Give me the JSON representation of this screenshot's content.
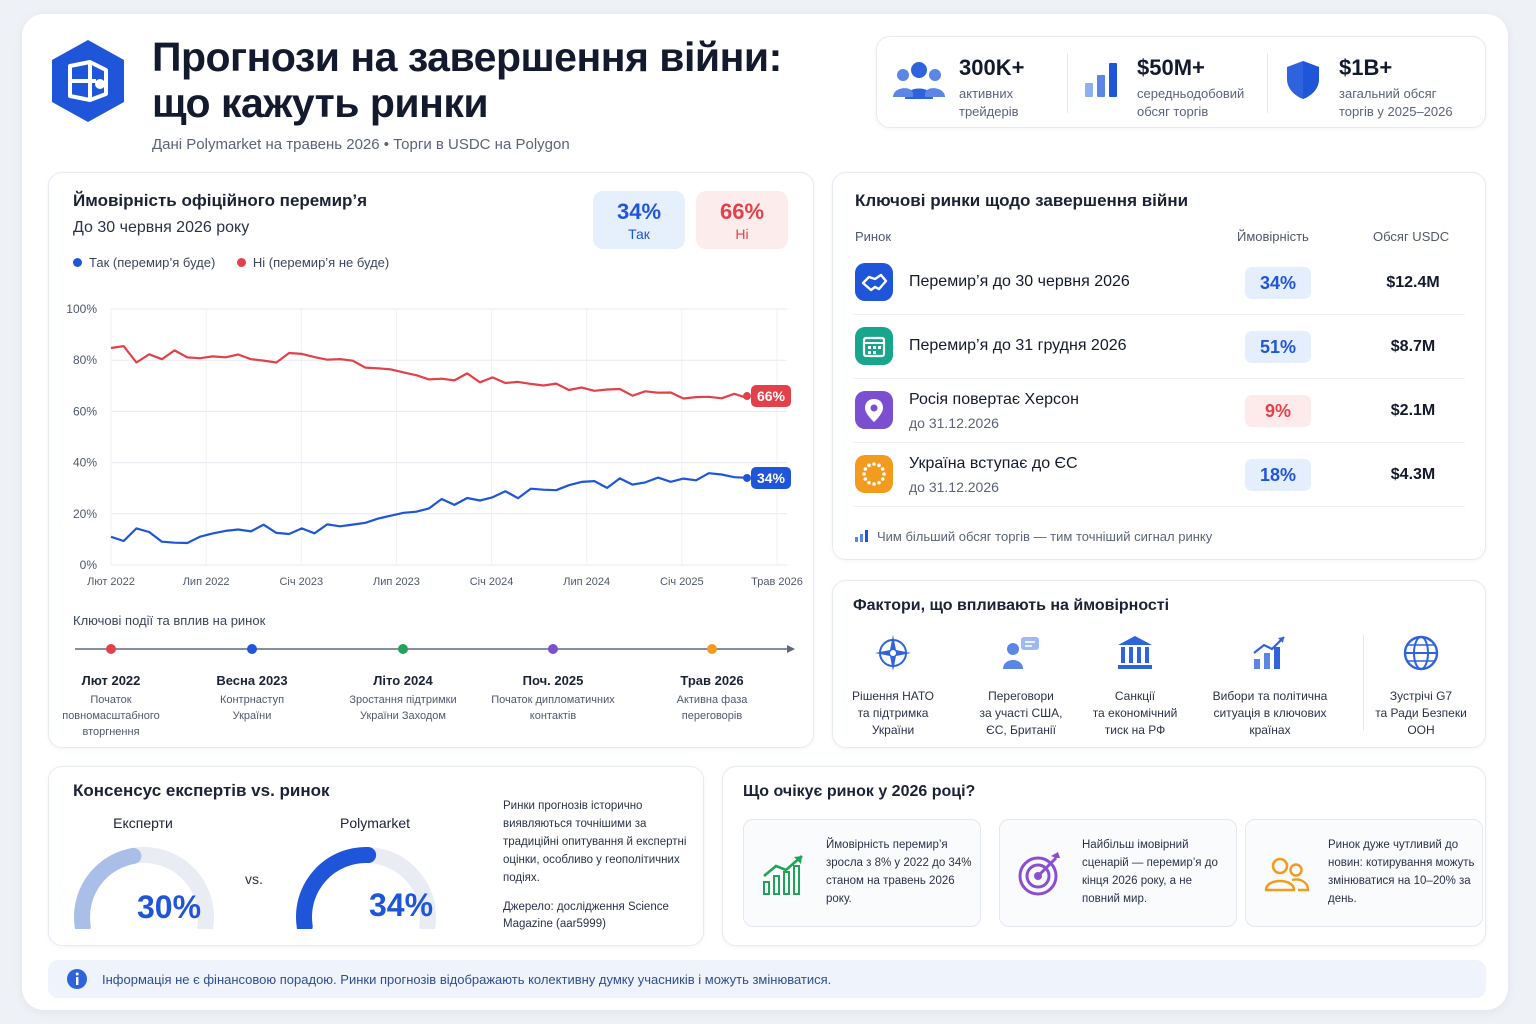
{
  "header": {
    "title_line1": "Прогнози на завершення війни:",
    "title_line2": "що кажуть ринки",
    "subtitle": "Дані Polymarket на травень 2026 • Торги в USDC на Polygon",
    "stats": [
      {
        "value": "300K+",
        "label": "активних\nтрейдерів",
        "icon": "users-icon"
      },
      {
        "value": "$50M+",
        "label": "середньодобовий\nобсяг торгів",
        "icon": "bar-chart-icon"
      },
      {
        "value": "$1B+",
        "label": "загальний обсяг\nторгів у 2025–2026",
        "icon": "shield-icon"
      }
    ]
  },
  "colors": {
    "blue": "#1f55d8",
    "red": "#e2414a",
    "navy": "#141a2e"
  },
  "chart_card": {
    "title": "Ймовірність офіційного перемир’я",
    "subtitle": "До 30 червня 2026 року",
    "yes_pill": {
      "value": "34%",
      "label": "Так"
    },
    "no_pill": {
      "value": "66%",
      "label": "Ні"
    },
    "legend_yes": "Так (перемир’я буде)",
    "legend_no": "Ні (перемир’я не буде)",
    "events_title": "Ключові події та вплив на ринок",
    "events": [
      {
        "title": "Лют 2022",
        "desc": "Початок\nповномасштабного\nвторгнення",
        "color": "#e2414a"
      },
      {
        "title": "Весна 2023",
        "desc": "Контрнаступ\nУкраїни",
        "color": "#1f55d8"
      },
      {
        "title": "Літо 2024",
        "desc": "Зростання підтримки\nУкраїни Заходом",
        "color": "#22a35a"
      },
      {
        "title": "Поч. 2025",
        "desc": "Початок дипломатичних\nконтактів",
        "color": "#7a4fd0"
      },
      {
        "title": "Трав 2026",
        "desc": "Активна фаза\nпереговорів",
        "color": "#f29b1f"
      }
    ]
  },
  "chart_data": {
    "type": "line",
    "x_ticks": [
      "Лют 2022",
      "Лип 2022",
      "Січ 2023",
      "Лип 2023",
      "Січ 2024",
      "Лип 2024",
      "Січ 2025",
      "Трав 2026"
    ],
    "y_ticks": [
      "0%",
      "20%",
      "40%",
      "60%",
      "80%",
      "100%"
    ],
    "ylim": [
      0,
      100
    ],
    "series": [
      {
        "name": "Так (перемир’я буде)",
        "color": "#1f55d8",
        "end_label": "34%",
        "values": [
          11,
          9,
          15,
          12,
          10,
          8,
          9,
          11,
          12,
          14,
          13,
          14,
          15,
          13,
          12,
          14,
          13,
          15,
          16,
          15,
          17,
          18,
          19,
          21,
          20,
          23,
          25,
          24,
          26,
          25,
          27,
          28,
          27,
          29,
          30,
          29,
          31,
          33,
          32,
          31,
          33,
          32,
          32,
          34,
          33,
          33,
          34,
          35,
          36,
          34,
          34
        ]
      },
      {
        "name": "Ні (перемир’я не буде)",
        "color": "#e2414a",
        "end_label": "66%",
        "values": [
          84,
          86,
          79,
          82,
          81,
          83,
          82,
          80,
          82,
          81,
          82,
          81,
          79,
          80,
          82,
          83,
          81,
          80,
          81,
          79,
          78,
          76,
          77,
          75,
          74,
          73,
          72,
          73,
          74,
          72,
          73,
          71,
          72,
          70,
          71,
          70,
          69,
          69,
          68,
          69,
          68,
          67,
          67,
          68,
          67,
          65,
          66,
          65,
          66,
          66,
          66
        ]
      }
    ]
  },
  "markets": {
    "title": "Ключові ринки щодо завершення війни",
    "col_market": "Ринок",
    "col_prob": "Ймовірність",
    "col_vol": "Обсяг USDC",
    "rows": [
      {
        "name": "Перемир’я до 30 червня 2026",
        "sub": "",
        "prob": "34%",
        "vol": "$12.4M",
        "icon": "handshake-icon",
        "icon_color": "#1f55d8",
        "prob_color": "#1f55d8",
        "prob_bg": "#e4eefc"
      },
      {
        "name": "Перемир’я до 31 грудня 2026",
        "sub": "",
        "prob": "51%",
        "vol": "$8.7M",
        "icon": "calendar-icon",
        "icon_color": "#17a58c",
        "prob_color": "#1f55d8",
        "prob_bg": "#e4eefc"
      },
      {
        "name": "Росія повертає Херсон",
        "sub": "до 31.12.2026",
        "prob": "9%",
        "vol": "$2.1M",
        "icon": "location-pin-icon",
        "icon_color": "#7a4fd0",
        "prob_color": "#e2414a",
        "prob_bg": "#fdeaea"
      },
      {
        "name": "Україна вступає до ЄС",
        "sub": "до 31.12.2026",
        "prob": "18%",
        "vol": "$4.3M",
        "icon": "eu-stars-icon",
        "icon_color": "#f29b1f",
        "prob_color": "#1f55d8",
        "prob_bg": "#e4eefc"
      }
    ],
    "note": "Чим більший обсяг торгів — тим точніший сигнал ринку"
  },
  "factors": {
    "title": "Фактори, що впливають на ймовірності",
    "items": [
      {
        "label": "Рішення НАТО\nта підтримка\nУкраїни",
        "icon": "compass-star-icon"
      },
      {
        "label": "Переговори\nза участі США,\nЄС, Британії",
        "icon": "negotiation-icon"
      },
      {
        "label": "Санкції\nта економічний\nтиск на РФ",
        "icon": "bank-icon"
      },
      {
        "label": "Вибори та політична\nситуація в ключових\nкраїнах",
        "icon": "growth-chart-icon"
      },
      {
        "label": "Зустрічі G7\nта Ради Безпеки\nООН",
        "icon": "globe-icon"
      }
    ]
  },
  "consensus": {
    "title": "Консенсус експертів vs. ринок",
    "experts_label": "Експерти",
    "experts_value": "30%",
    "experts_fraction": 0.3,
    "vs": "vs.",
    "market_label": "Polymarket",
    "market_value": "34%",
    "market_fraction": 0.34,
    "text": "Ринки прогнозів історично виявляються точнішими за традиційні опитування й експертні оцінки, особливо у геополітичних подіях.",
    "source": "Джерело: дослідження Science Magazine (aar5999)"
  },
  "expect": {
    "title": "Що очікує ринок у 2026 році?",
    "items": [
      {
        "text": "Ймовірність перемир’я зросла з 8% у 2022 до 34% станом на травень 2026 року.",
        "icon": "trend-up-icon"
      },
      {
        "text": "Найбільш імовірний сценарій — перемир’я до кінця 2026 року, а не повний мир.",
        "icon": "target-icon"
      },
      {
        "text": "Ринок дуже чутливий до новин: котирування можуть змінюватися на 10–20% за день.",
        "icon": "people-icon"
      }
    ]
  },
  "disclaimer": "Інформація не є фінансовою порадою. Ринки прогнозів відображають колективну думку учасників і можуть змінюватися."
}
